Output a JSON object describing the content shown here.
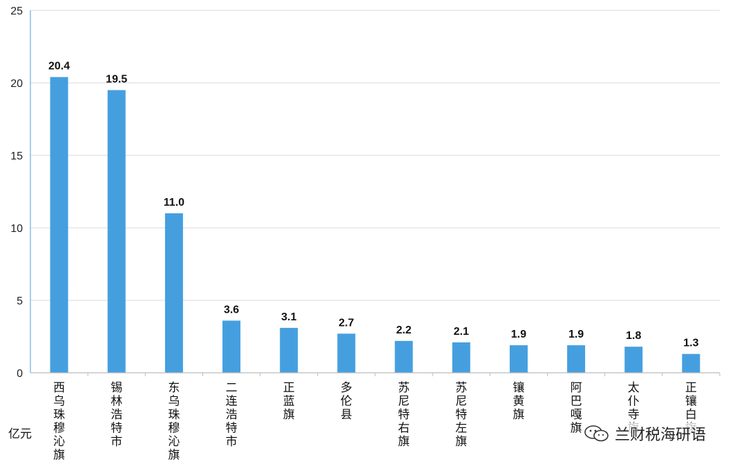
{
  "chart_data": {
    "type": "bar",
    "categories": [
      "西乌珠穆沁旗",
      "锡林浩特市",
      "东乌珠穆沁旗",
      "二连浩特市",
      "正蓝旗",
      "多伦县",
      "苏尼特右旗",
      "苏尼特左旗",
      "镶黄旗",
      "阿巴嘎旗",
      "太仆寺旗",
      "正镶白旗"
    ],
    "values": [
      20.4,
      19.5,
      11.0,
      3.6,
      3.1,
      2.7,
      2.2,
      2.1,
      1.9,
      1.9,
      1.8,
      1.3
    ],
    "value_labels": [
      "20.4",
      "19.5",
      "11.0",
      "3.6",
      "3.1",
      "2.7",
      "2.2",
      "2.1",
      "1.9",
      "1.9",
      "1.8",
      "1.3"
    ],
    "ylim": [
      0,
      25
    ],
    "yticks": [
      0,
      5,
      10,
      15,
      20,
      25
    ],
    "unit": "亿元",
    "grid": true,
    "bar_color": "#459fdf"
  },
  "watermark": {
    "text": "兰财税海研语",
    "icon": "wechat-icon"
  }
}
